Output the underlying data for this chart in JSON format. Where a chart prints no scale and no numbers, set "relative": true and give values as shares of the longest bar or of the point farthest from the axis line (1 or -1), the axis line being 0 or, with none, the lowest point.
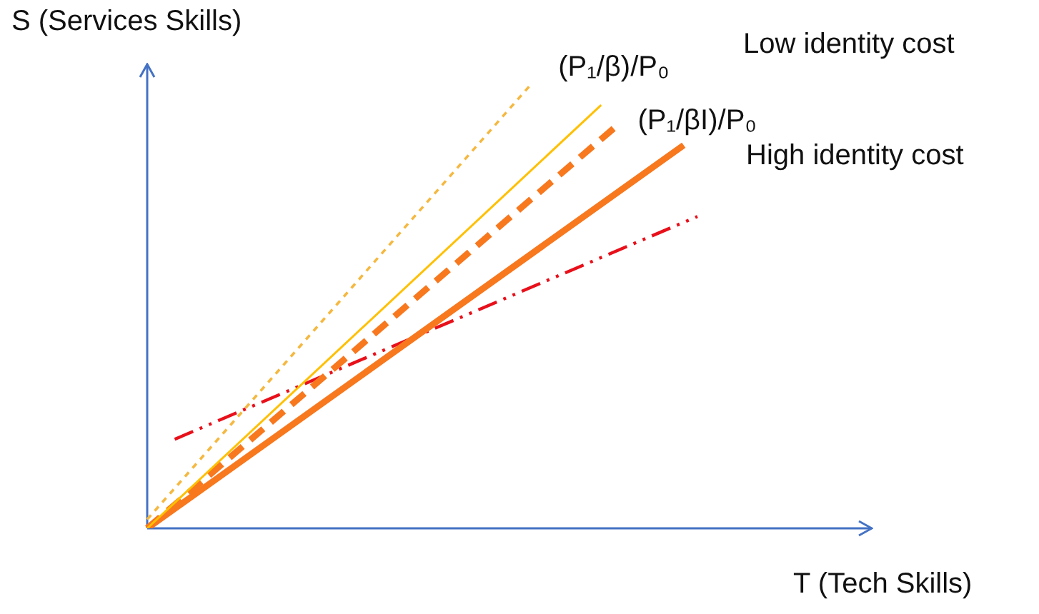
{
  "chart_data": {
    "type": "line",
    "relative": true,
    "xlabel": "T (Tech Skills)",
    "ylabel": "S (Services Skills)",
    "categories": [
      null,
      null,
      null,
      null,
      null,
      null,
      null,
      null,
      null,
      null,
      null,
      null,
      null,
      null,
      null,
      null,
      null,
      null,
      null,
      null,
      null,
      null,
      null,
      null,
      null,
      null,
      null,
      null,
      null,
      null,
      null,
      null,
      null,
      null,
      null,
      null,
      null,
      null,
      null,
      null,
      null
    ],
    "series": [
      {
        "color": "#f5b840",
        "line_style": "dotted",
        "values": [
          0.02,
          null,
          null,
          null,
          null,
          null,
          null,
          null,
          null,
          null,
          null,
          null,
          null,
          null,
          null,
          null,
          null,
          null,
          null,
          null,
          null,
          null,
          null,
          null,
          null,
          null,
          null,
          null,
          1,
          null,
          null,
          null,
          null,
          null,
          null,
          null,
          null,
          null,
          null,
          null,
          null
        ]
      },
      {
        "name": "(P₁/β)/P₀",
        "color": "#ffc000",
        "line_style": "solid",
        "values": [
          0,
          null,
          null,
          null,
          null,
          null,
          null,
          null,
          null,
          null,
          null,
          null,
          null,
          null,
          null,
          null,
          null,
          null,
          null,
          null,
          null,
          null,
          null,
          null,
          null,
          null,
          null,
          null,
          null,
          null,
          null,
          null,
          null,
          0.95,
          null,
          null,
          null,
          null,
          null,
          null,
          null
        ]
      },
      {
        "name": "(P₁/βI)/P₀",
        "color": "#f8781e",
        "line_style": "dashed",
        "values": [
          0,
          null,
          null,
          null,
          null,
          null,
          null,
          null,
          null,
          null,
          null,
          null,
          null,
          null,
          null,
          null,
          null,
          null,
          null,
          null,
          null,
          null,
          null,
          null,
          null,
          null,
          null,
          null,
          null,
          null,
          null,
          null,
          null,
          null,
          0.9,
          null,
          null,
          null,
          null,
          null,
          null
        ]
      },
      {
        "color": "#f8781e",
        "line_style": "solid",
        "values": [
          0,
          null,
          null,
          null,
          null,
          null,
          null,
          null,
          null,
          null,
          null,
          null,
          null,
          null,
          null,
          null,
          null,
          null,
          null,
          null,
          null,
          null,
          null,
          null,
          null,
          null,
          null,
          null,
          null,
          null,
          null,
          null,
          null,
          null,
          null,
          null,
          null,
          null,
          null,
          0.86,
          null
        ]
      },
      {
        "color": "#e8101a",
        "line_style": "dashed",
        "values": [
          null,
          null,
          0.2,
          null,
          null,
          null,
          null,
          null,
          null,
          null,
          null,
          null,
          null,
          null,
          null,
          null,
          null,
          null,
          null,
          null,
          null,
          null,
          null,
          null,
          null,
          null,
          null,
          null,
          null,
          null,
          null,
          null,
          null,
          null,
          null,
          null,
          null,
          null,
          null,
          null,
          0.7
        ]
      }
    ],
    "annotations": [
      "Low identity cost",
      "High identity cost"
    ]
  }
}
